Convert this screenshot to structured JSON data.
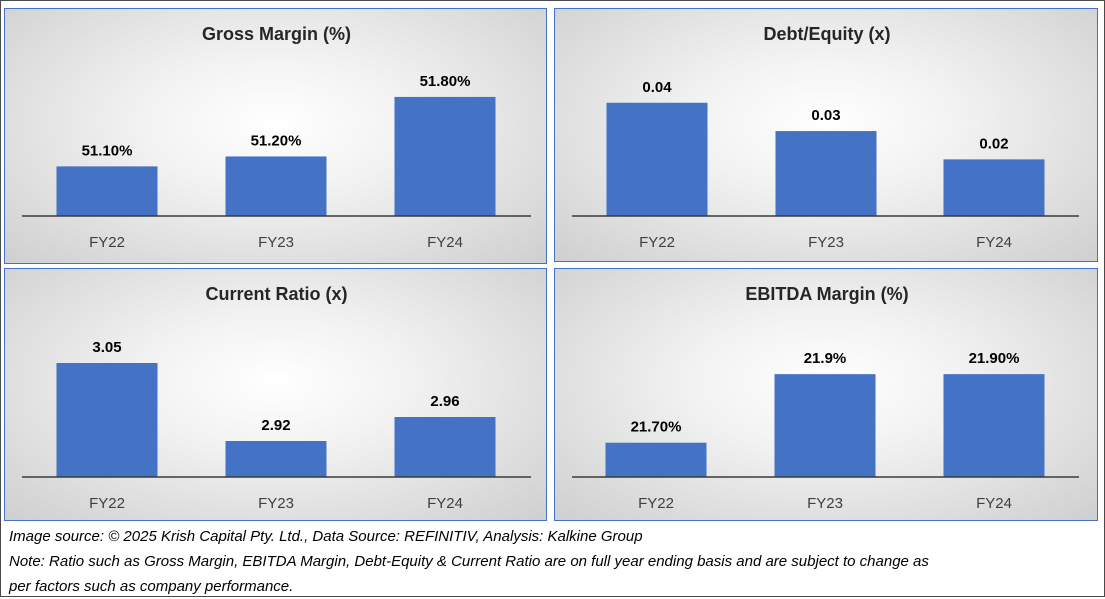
{
  "chart_data": [
    {
      "type": "bar",
      "title": "Gross Margin (%)",
      "categories": [
        "FY22",
        "FY23",
        "FY24"
      ],
      "values": [
        51.1,
        51.2,
        51.8
      ],
      "data_labels": [
        "51.10%",
        "51.20%",
        "51.80%"
      ],
      "ylim": [
        50.6,
        51.9
      ],
      "xlabel": "",
      "ylabel": "",
      "grid": false,
      "bar_color": "#4472c4"
    },
    {
      "type": "bar",
      "title": "Debt/Equity (x)",
      "categories": [
        "FY22",
        "FY23",
        "FY24"
      ],
      "values": [
        0.04,
        0.03,
        0.02
      ],
      "data_labels": [
        "0.04",
        "0.03",
        "0.02"
      ],
      "ylim": [
        0,
        0.0438
      ],
      "xlabel": "",
      "ylabel": "",
      "grid": false,
      "bar_color": "#4472c4"
    },
    {
      "type": "bar",
      "title": "Current Ratio (x)",
      "categories": [
        "FY22",
        "FY23",
        "FY24"
      ],
      "values": [
        3.05,
        2.92,
        2.96
      ],
      "data_labels": [
        "3.05",
        "2.92",
        "2.96"
      ],
      "ylim": [
        2.86,
        3.06
      ],
      "xlabel": "",
      "ylabel": "",
      "grid": false,
      "bar_color": "#4472c4"
    },
    {
      "type": "bar",
      "title": "EBITDA Margin (%)",
      "categories": [
        "FY22",
        "FY23",
        "FY24"
      ],
      "values": [
        21.7,
        21.9,
        21.9
      ],
      "data_labels": [
        "21.70%",
        "21.9%",
        "21.90%"
      ],
      "ylim": [
        21.6,
        21.95
      ],
      "xlabel": "",
      "ylabel": "",
      "grid": false,
      "bar_color": "#4472c4"
    }
  ],
  "footer": {
    "source": "Image source: © 2025 Krish Capital Pty. Ltd., Data Source: REFINITIV, Analysis: Kalkine Group",
    "note_line1": "Note: Ratio such as Gross Margin, EBITDA Margin, Debt-Equity & Current Ratio are on full year ending basis and are subject to change as",
    "note_line2": "per factors such as company performance."
  }
}
